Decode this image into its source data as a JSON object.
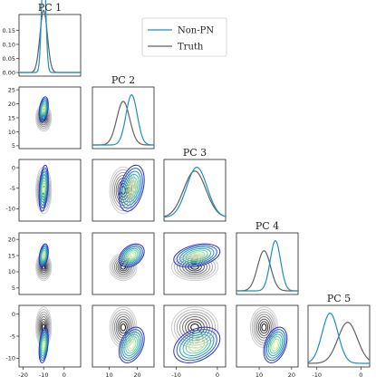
{
  "chart_data": {
    "type": "corner",
    "variables": [
      "PC 1",
      "PC 2",
      "PC 3",
      "PC 4",
      "PC 5"
    ],
    "legend": {
      "placement": "top-center",
      "entries": [
        "Non-PN",
        "Truth"
      ]
    },
    "colors": {
      "non_pn": "#1f8fbf",
      "truth": "#606060"
    },
    "series": [
      {
        "name": "Non-PN",
        "means": [
          -10,
          18,
          -5,
          15,
          -7
        ],
        "sds": [
          1.0,
          2.0,
          2.5,
          1.6,
          1.8
        ]
      },
      {
        "name": "Truth",
        "means": [
          -10,
          15,
          -5.5,
          11.5,
          -3
        ],
        "sds": [
          1.8,
          2.3,
          2.7,
          2.0,
          2.2
        ]
      }
    ],
    "axis_ranges": [
      [
        -22,
        8
      ],
      [
        4,
        26
      ],
      [
        -13,
        2
      ],
      [
        3,
        22
      ],
      [
        -12,
        2
      ]
    ],
    "ticks": {
      "diag_pc1_y": [
        "0.00",
        "0.05",
        "0.10",
        "0.15"
      ],
      "rows": [
        [
          "25",
          "20",
          "15",
          "10",
          "5"
        ],
        [
          "0",
          "-5",
          "-10"
        ],
        [
          "20",
          "15",
          "10",
          "5"
        ],
        [
          "0",
          "-5",
          "-10"
        ]
      ],
      "cols": [
        [
          "-20",
          "-10",
          "0"
        ],
        [
          "10",
          "20"
        ],
        [
          "-10",
          "0"
        ],
        [
          "10",
          "20"
        ],
        [
          "-10",
          "0"
        ]
      ]
    },
    "grid": false
  }
}
